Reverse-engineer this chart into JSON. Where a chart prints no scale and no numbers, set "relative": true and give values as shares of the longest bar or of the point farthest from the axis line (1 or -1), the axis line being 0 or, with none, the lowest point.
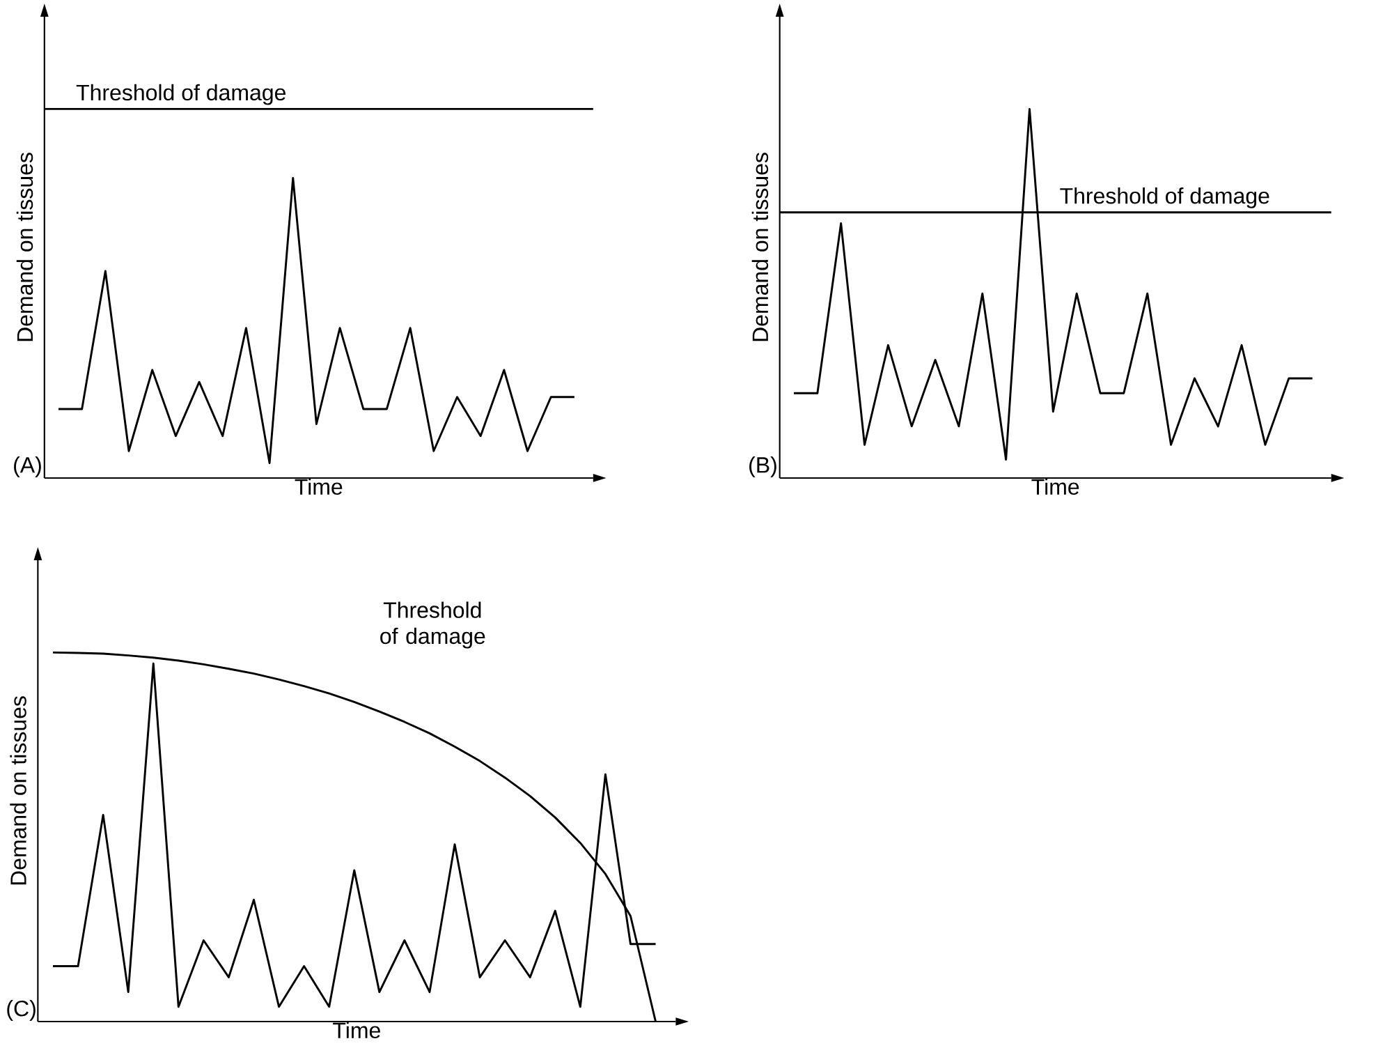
{
  "chart_data": [
    {
      "type": "line",
      "relative": true,
      "xlabel": "Time",
      "ylabel": "Demand on tissues",
      "annotations": [
        "(A)"
      ],
      "categories": [
        null,
        null,
        null,
        null,
        null,
        null,
        null,
        null,
        null,
        null,
        null,
        null,
        null,
        null,
        null,
        null,
        null,
        null,
        null,
        null,
        null,
        null,
        null
      ],
      "series": [
        {
          "color": "#000000",
          "values": [
            0.23,
            0.23,
            0.69,
            0.09,
            0.36,
            0.14,
            0.32,
            0.14,
            0.5,
            0.05,
            1,
            0.18,
            0.5,
            0.23,
            0.23,
            0.5,
            0.09,
            0.27,
            0.14,
            0.36,
            0.09,
            0.27,
            0.27
          ]
        }
      ],
      "ref_lines": [
        {
          "axis": "y",
          "value": 1.23,
          "label": "Threshold of damage",
          "color": "#000000"
        }
      ]
    },
    {
      "type": "line",
      "relative": true,
      "xlabel": "Time",
      "ylabel": "Demand on tissues",
      "annotations": [
        "(B)"
      ],
      "categories": [
        null,
        null,
        null,
        null,
        null,
        null,
        null,
        null,
        null,
        null,
        null,
        null,
        null,
        null,
        null,
        null,
        null,
        null,
        null,
        null,
        null,
        null,
        null
      ],
      "series": [
        {
          "color": "#000000",
          "values": [
            0.23,
            0.23,
            0.69,
            0.09,
            0.36,
            0.14,
            0.32,
            0.14,
            0.5,
            0.05,
            1,
            0.18,
            0.5,
            0.23,
            0.23,
            0.5,
            0.09,
            0.27,
            0.14,
            0.36,
            0.09,
            0.27,
            0.27
          ]
        }
      ],
      "ref_lines": [
        {
          "axis": "y",
          "value": 0.72,
          "label": "Threshold of damage",
          "color": "#000000"
        }
      ]
    },
    {
      "type": "line",
      "relative": true,
      "xlabel": "Time",
      "ylabel": "Demand on tissues",
      "annotations": [
        "(C)"
      ],
      "categories": [
        null,
        null,
        null,
        null,
        null,
        null,
        null,
        null,
        null,
        null,
        null,
        null,
        null,
        null,
        null,
        null,
        null,
        null,
        null,
        null,
        null,
        null,
        null,
        null,
        null
      ],
      "series": [
        {
          "color": "#000000",
          "values": [
            0.15,
            0.15,
            0.56,
            0.08,
            0.97,
            0.04,
            0.22,
            0.12,
            0.33,
            0.04,
            0.15,
            0.04,
            0.41,
            0.08,
            0.22,
            0.08,
            0.48,
            0.12,
            0.22,
            0.12,
            0.3,
            0.04,
            0.67,
            0.21,
            0.21
          ]
        },
        {
          "name": "Threshold of damage",
          "color": "#000000",
          "values": [
            1,
            0.999,
            0.997,
            0.992,
            0.986,
            0.978,
            0.968,
            0.956,
            0.943,
            0.927,
            0.909,
            0.889,
            0.866,
            0.84,
            0.812,
            0.781,
            0.745,
            0.706,
            0.661,
            0.611,
            0.553,
            0.484,
            0.4,
            0.286,
            0
          ]
        }
      ]
    }
  ]
}
